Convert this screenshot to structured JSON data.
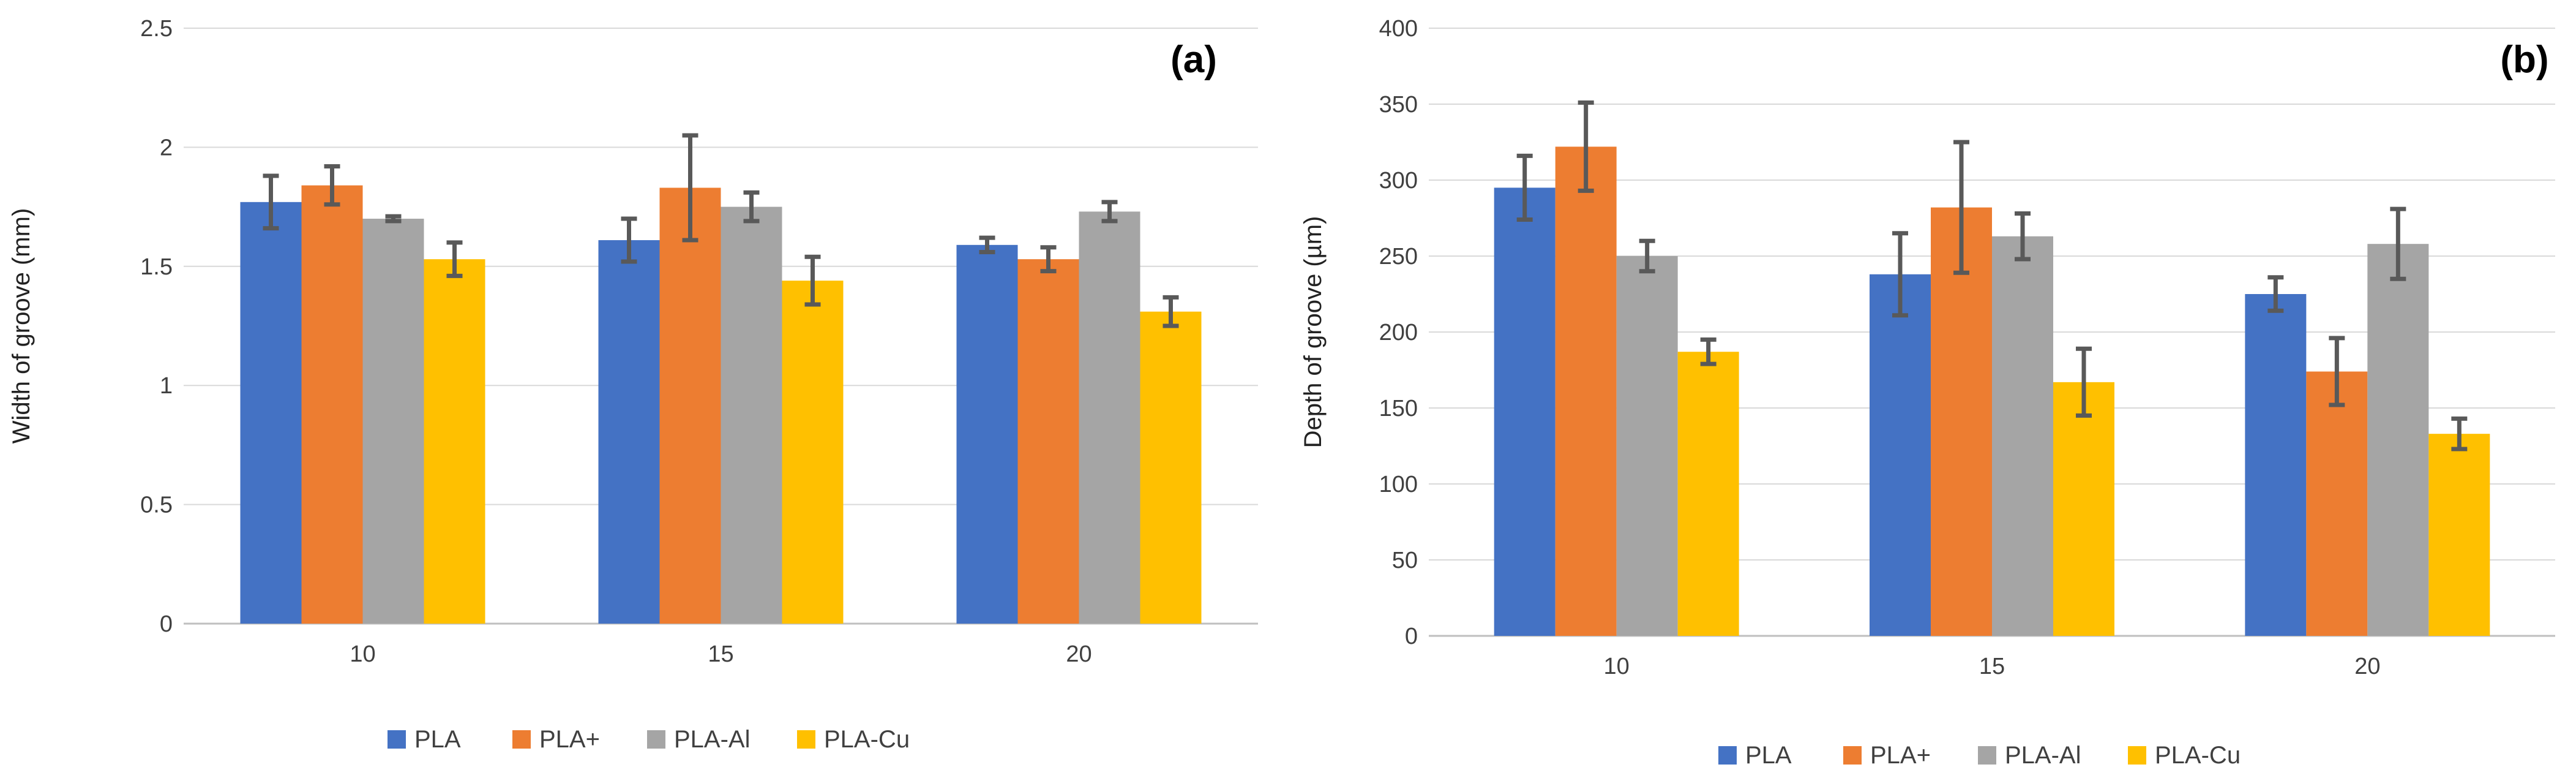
{
  "chart_data": [
    {
      "type": "bar",
      "panel_label": "(a)",
      "title": "",
      "xlabel": "",
      "ylabel": "Width of groove (mm)",
      "ylim": [
        0,
        2.5
      ],
      "yticks": [
        0,
        0.5,
        1,
        1.5,
        2,
        2.5
      ],
      "ytick_labels": [
        "0",
        "0.5",
        "1",
        "1.5",
        "2",
        "2.5"
      ],
      "grid": true,
      "legend_position": "bottom",
      "categories": [
        "10",
        "15",
        "20"
      ],
      "series": [
        {
          "name": "PLA",
          "color": "#4472C4",
          "values": [
            1.77,
            1.61,
            1.59
          ],
          "errors": [
            0.11,
            0.09,
            0.03
          ]
        },
        {
          "name": "PLA+",
          "color": "#ED7D31",
          "values": [
            1.84,
            1.83,
            1.53
          ],
          "errors": [
            0.08,
            0.22,
            0.05
          ]
        },
        {
          "name": "PLA-Al",
          "color": "#A5A5A5",
          "values": [
            1.7,
            1.75,
            1.73
          ],
          "errors": [
            0.01,
            0.06,
            0.04
          ]
        },
        {
          "name": "PLA-Cu",
          "color": "#FFC000",
          "values": [
            1.53,
            1.44,
            1.31
          ],
          "errors": [
            0.07,
            0.1,
            0.06
          ]
        }
      ]
    },
    {
      "type": "bar",
      "panel_label": "(b)",
      "title": "",
      "xlabel": "",
      "ylabel": "Depth of groove (µm)",
      "ylim": [
        0,
        400
      ],
      "yticks": [
        0,
        50,
        100,
        150,
        200,
        250,
        300,
        350,
        400
      ],
      "ytick_labels": [
        "0",
        "50",
        "100",
        "150",
        "200",
        "250",
        "300",
        "350",
        "400"
      ],
      "grid": true,
      "legend_position": "bottom",
      "categories": [
        "10",
        "15",
        "20"
      ],
      "series": [
        {
          "name": "PLA",
          "color": "#4472C4",
          "values": [
            295,
            238,
            225
          ],
          "errors": [
            21,
            27,
            11
          ]
        },
        {
          "name": "PLA+",
          "color": "#ED7D31",
          "values": [
            322,
            282,
            174
          ],
          "errors": [
            29,
            43,
            22
          ]
        },
        {
          "name": "PLA-Al",
          "color": "#A5A5A5",
          "values": [
            250,
            263,
            258
          ],
          "errors": [
            10,
            15,
            23
          ]
        },
        {
          "name": "PLA-Cu",
          "color": "#FFC000",
          "values": [
            187,
            167,
            133
          ],
          "errors": [
            8,
            22,
            10
          ]
        }
      ]
    }
  ]
}
